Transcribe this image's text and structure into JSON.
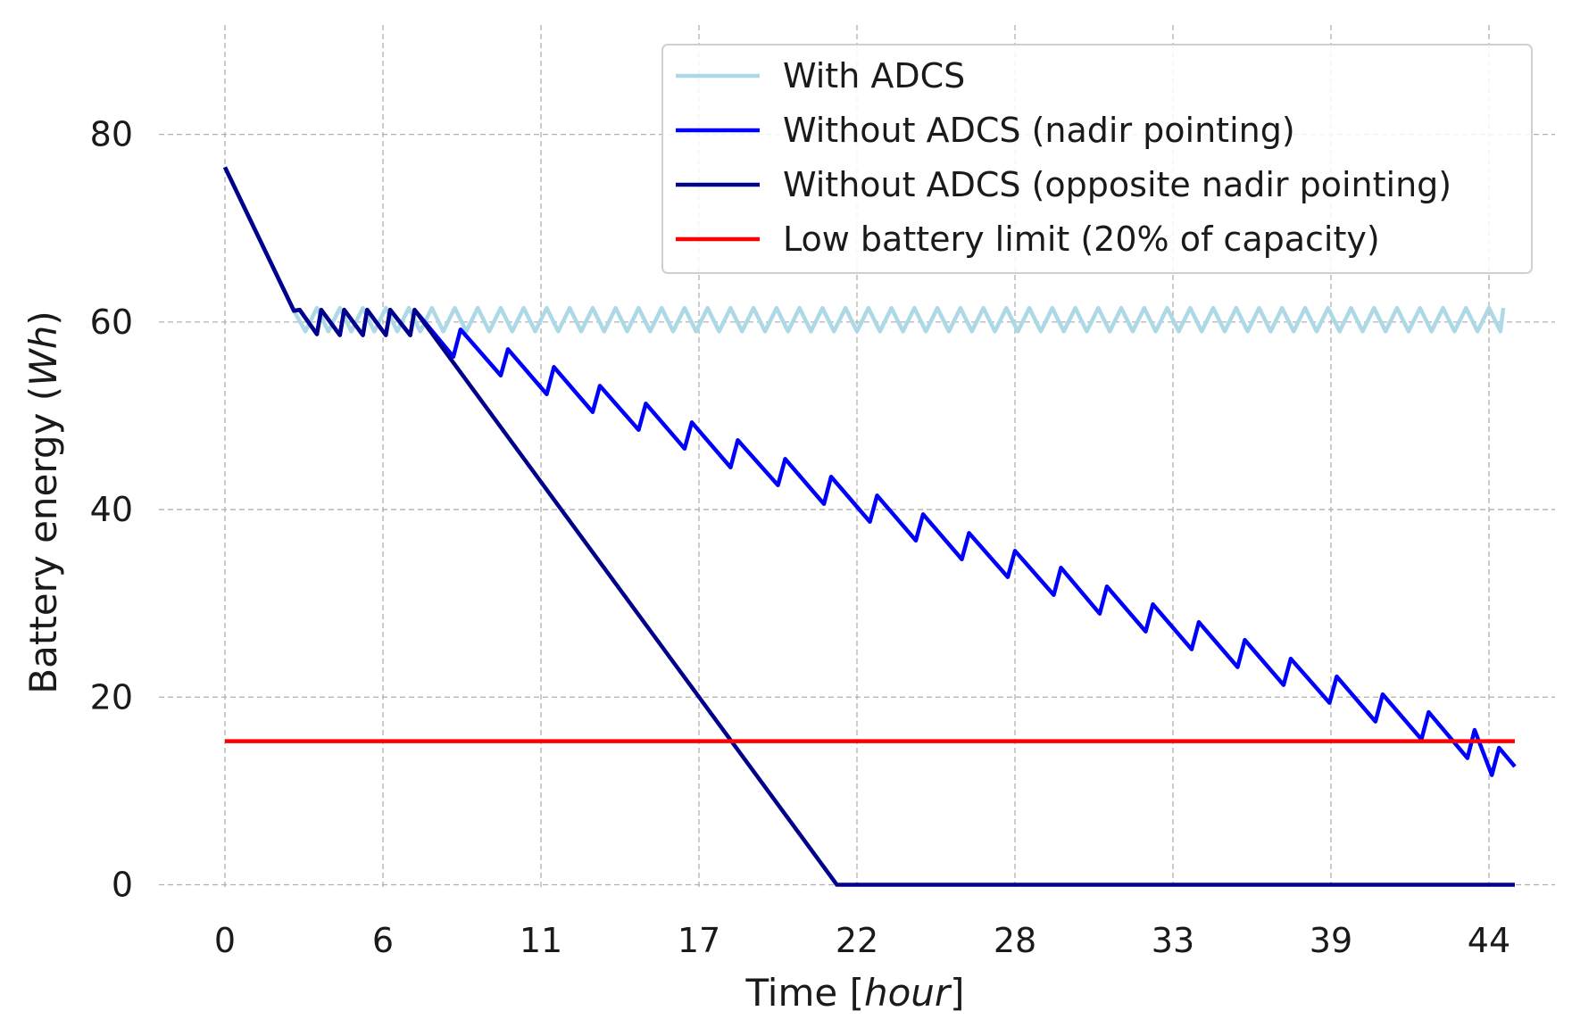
{
  "chart_data": {
    "type": "line",
    "title": "",
    "xlabel": {
      "prefix": "Time [",
      "italic": "hour",
      "suffix": "]"
    },
    "ylabel": {
      "prefix": "Battery energy (",
      "italic": "Wh",
      "suffix": ")"
    },
    "xlim": [
      -2.3,
      46.3
    ],
    "ylim": [
      -1,
      93
    ],
    "xticks": [
      0,
      5.5,
      11,
      16.5,
      22,
      27.5,
      33,
      38.5,
      44
    ],
    "xtick_labels": [
      "0",
      "6",
      "11",
      "17",
      "22",
      "28",
      "33",
      "39",
      "44"
    ],
    "yticks": [
      0,
      20,
      40,
      60,
      80
    ],
    "ytick_labels": [
      "0",
      "20",
      "40",
      "60",
      "80"
    ],
    "grid": true,
    "legend_position": "top-right",
    "series": [
      {
        "name": "With ADCS",
        "color": "#add8e6",
        "pattern": "sawtooth",
        "start": [
          0,
          76.5
        ],
        "ramp_end": [
          2.4,
          61.2
        ],
        "period": 0.8,
        "high": 61.5,
        "low": 59.0,
        "end_x": 44.5
      },
      {
        "name": "Without ADCS (nadir pointing)",
        "color": "#0000ff",
        "pattern": "points",
        "points": [
          [
            0,
            76.5
          ],
          [
            2.4,
            61.2
          ],
          [
            2.6,
            61.3
          ],
          [
            3.2,
            58.7
          ],
          [
            3.35,
            61.3
          ],
          [
            4.0,
            58.6
          ],
          [
            4.15,
            61.3
          ],
          [
            4.8,
            58.6
          ],
          [
            4.95,
            61.3
          ],
          [
            5.6,
            58.6
          ],
          [
            5.75,
            61.3
          ],
          [
            6.45,
            58.6
          ],
          [
            6.6,
            61.3
          ],
          [
            7.95,
            56.3
          ],
          [
            8.2,
            59.2
          ],
          [
            9.6,
            54.3
          ],
          [
            9.85,
            57.1
          ],
          [
            11.2,
            52.3
          ],
          [
            11.45,
            55.2
          ],
          [
            12.8,
            50.4
          ],
          [
            13.05,
            53.2
          ],
          [
            14.4,
            48.5
          ],
          [
            14.65,
            51.3
          ],
          [
            16.0,
            46.5
          ],
          [
            16.25,
            49.3
          ],
          [
            17.6,
            44.5
          ],
          [
            17.85,
            47.4
          ],
          [
            19.25,
            42.6
          ],
          [
            19.5,
            45.4
          ],
          [
            20.85,
            40.6
          ],
          [
            21.1,
            43.5
          ],
          [
            22.45,
            38.7
          ],
          [
            22.7,
            41.5
          ],
          [
            24.05,
            36.7
          ],
          [
            24.3,
            39.5
          ],
          [
            25.65,
            34.7
          ],
          [
            25.9,
            37.5
          ],
          [
            27.25,
            32.8
          ],
          [
            27.5,
            35.6
          ],
          [
            28.85,
            30.9
          ],
          [
            29.1,
            33.8
          ],
          [
            30.45,
            28.9
          ],
          [
            30.7,
            31.8
          ],
          [
            32.05,
            27.0
          ],
          [
            32.3,
            29.9
          ],
          [
            33.65,
            25.1
          ],
          [
            33.9,
            28.0
          ],
          [
            35.25,
            23.2
          ],
          [
            35.5,
            26.1
          ],
          [
            36.85,
            21.3
          ],
          [
            37.1,
            24.1
          ],
          [
            38.45,
            19.4
          ],
          [
            38.7,
            22.2
          ],
          [
            40.05,
            17.4
          ],
          [
            40.3,
            20.3
          ],
          [
            41.65,
            15.5
          ],
          [
            41.9,
            18.4
          ],
          [
            43.25,
            13.5
          ],
          [
            43.5,
            16.5
          ],
          [
            44.1,
            11.7
          ],
          [
            44.35,
            14.6
          ],
          [
            44.9,
            12.6
          ]
        ]
      },
      {
        "name": "Without ADCS (opposite nadir pointing)",
        "color": "#00008b",
        "pattern": "points",
        "points": [
          [
            0,
            76.5
          ],
          [
            2.4,
            61.2
          ],
          [
            2.6,
            61.3
          ],
          [
            3.2,
            58.7
          ],
          [
            3.35,
            61.3
          ],
          [
            4.0,
            58.6
          ],
          [
            4.15,
            61.3
          ],
          [
            4.8,
            58.6
          ],
          [
            4.95,
            61.3
          ],
          [
            5.6,
            58.6
          ],
          [
            5.75,
            61.3
          ],
          [
            6.45,
            58.6
          ],
          [
            6.6,
            61.3
          ],
          [
            21.3,
            0
          ],
          [
            44.9,
            0
          ]
        ]
      },
      {
        "name": "Low battery limit (20% of capacity)",
        "color": "#ff0000",
        "pattern": "points",
        "points": [
          [
            0,
            15.3
          ],
          [
            44.9,
            15.3
          ]
        ]
      }
    ]
  }
}
